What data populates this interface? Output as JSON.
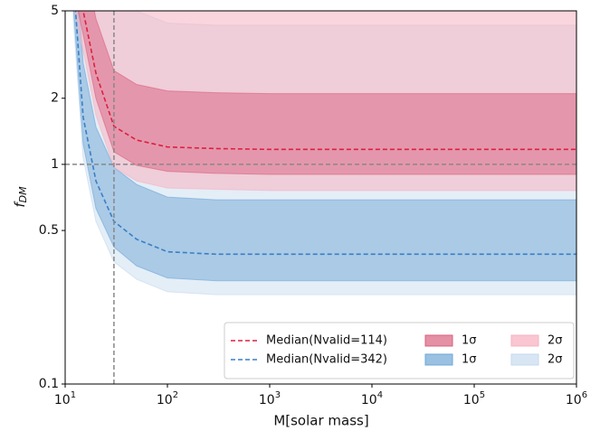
{
  "chart_data": {
    "type": "line",
    "xlabel": "M[solar mass]",
    "ylabel": "f",
    "ylabel_sub": "DM",
    "log_x": true,
    "log_y": true,
    "xlim": [
      10,
      1000000
    ],
    "ylim": [
      0.1,
      5
    ],
    "xticks": [
      {
        "value": 10,
        "label": "10",
        "exponent": "1"
      },
      {
        "value": 100,
        "label": "10",
        "exponent": "2"
      },
      {
        "value": 1000,
        "label": "10",
        "exponent": "3"
      },
      {
        "value": 10000,
        "label": "10",
        "exponent": "4"
      },
      {
        "value": 100000,
        "label": "10",
        "exponent": "5"
      },
      {
        "value": 1000000,
        "label": "10",
        "exponent": "6"
      }
    ],
    "yticks": [
      0.1,
      0.5,
      1,
      2,
      5
    ],
    "vline": 30,
    "hline": 1,
    "legend": "lower right",
    "x": [
      12,
      15,
      20,
      30,
      50,
      100,
      300,
      1000,
      10000,
      100000,
      1000000
    ],
    "series": [
      {
        "name": "Median(Nvalid=114)",
        "color": "#dc2042",
        "values": [
          8.2,
          5.0,
          2.6,
          1.49,
          1.29,
          1.2,
          1.18,
          1.17,
          1.17,
          1.17,
          1.17
        ]
      },
      {
        "name": "Median(Nvalid=342)",
        "color": "#3a7fc4",
        "values": [
          7.0,
          1.64,
          0.84,
          0.55,
          0.456,
          0.4,
          0.39,
          0.39,
          0.39,
          0.39,
          0.39
        ]
      }
    ],
    "bands": [
      {
        "name": "2σ",
        "color": "#c3d9ee",
        "opacity": 0.45,
        "lower": [
          4.6,
          1.07,
          0.55,
          0.36,
          0.3,
          0.263,
          0.255,
          0.255,
          0.255,
          0.255,
          0.255
        ],
        "upper": [
          77,
          18,
          9.2,
          6.1,
          5.0,
          4.4,
          4.3,
          4.3,
          4.3,
          4.3,
          4.3
        ]
      },
      {
        "name": "1σ",
        "color": "#6fa6d6",
        "opacity": 0.5,
        "lower": [
          5.3,
          1.24,
          0.63,
          0.42,
          0.345,
          0.304,
          0.295,
          0.295,
          0.295,
          0.295,
          0.295
        ],
        "upper": [
          12.4,
          2.9,
          1.48,
          0.97,
          0.81,
          0.71,
          0.69,
          0.69,
          0.69,
          0.69,
          0.69
        ]
      },
      {
        "name": "2σ",
        "color": "#f7b3c1",
        "opacity": 0.55,
        "lower": [
          5.3,
          3.3,
          1.67,
          0.97,
          0.84,
          0.78,
          0.77,
          0.76,
          0.76,
          0.76,
          0.76
        ],
        "upper": [
          42,
          25.8,
          13.2,
          7.6,
          6.6,
          6.2,
          6.06,
          6,
          6,
          6,
          6
        ]
      },
      {
        "name": "1σ",
        "color": "#d9617f",
        "opacity": 0.5,
        "lower": [
          6.3,
          3.9,
          2.0,
          1.14,
          0.99,
          0.93,
          0.91,
          0.9,
          0.9,
          0.9,
          0.9
        ],
        "upper": [
          14.7,
          9.0,
          4.6,
          2.67,
          2.31,
          2.16,
          2.12,
          2.1,
          2.1,
          2.1,
          2.1
        ]
      }
    ]
  }
}
